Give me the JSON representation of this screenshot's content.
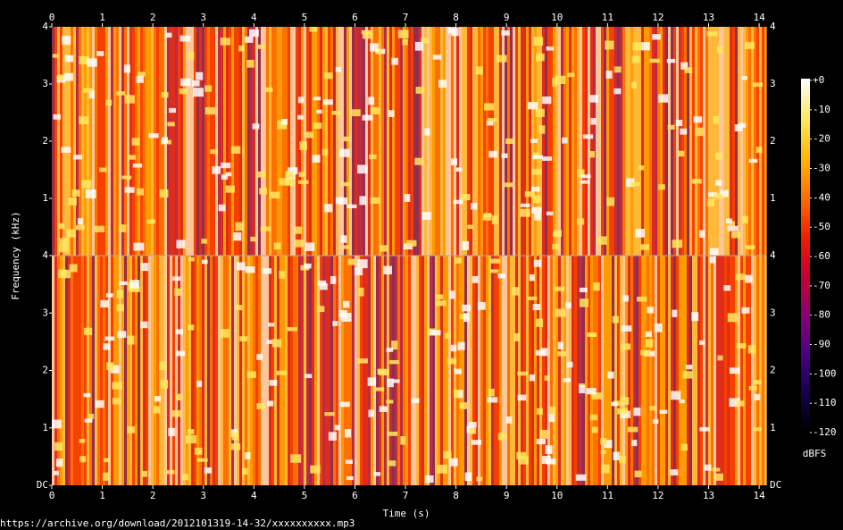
{
  "chart_data": {
    "type": "spectrogram",
    "xlabel": "Time (s)",
    "ylabel": "Frequency (kHz)",
    "xlim": [
      0,
      14.14
    ],
    "xticks": [
      0,
      1,
      2,
      3,
      4,
      5,
      6,
      7,
      8,
      9,
      10,
      11,
      12,
      13,
      14
    ],
    "channels": [
      {
        "ylim": [
          0,
          4
        ],
        "yticks": [
          1,
          2,
          3,
          4
        ]
      },
      {
        "ylim": [
          0,
          4
        ],
        "yticks": [
          {
            "value": 0,
            "label": "DC"
          },
          1,
          2,
          3,
          4
        ]
      }
    ],
    "colorbar": {
      "label": "dBFS",
      "lim": [
        -120,
        0
      ],
      "ticks": [
        {
          "value": 0,
          "label": "+0"
        },
        -10,
        -20,
        -30,
        -40,
        -50,
        -60,
        -70,
        -80,
        -90,
        -100,
        -110,
        -120
      ],
      "colors": [
        "#000000",
        "#14004a",
        "#4a0085",
        "#8a0070",
        "#c80030",
        "#f02000",
        "#ff7000",
        "#ffb800",
        "#ffe860",
        "#ffffff"
      ]
    },
    "source": "https://archive.org/download/2012101319-14-32/xxxxxxxxxx.mp3"
  }
}
